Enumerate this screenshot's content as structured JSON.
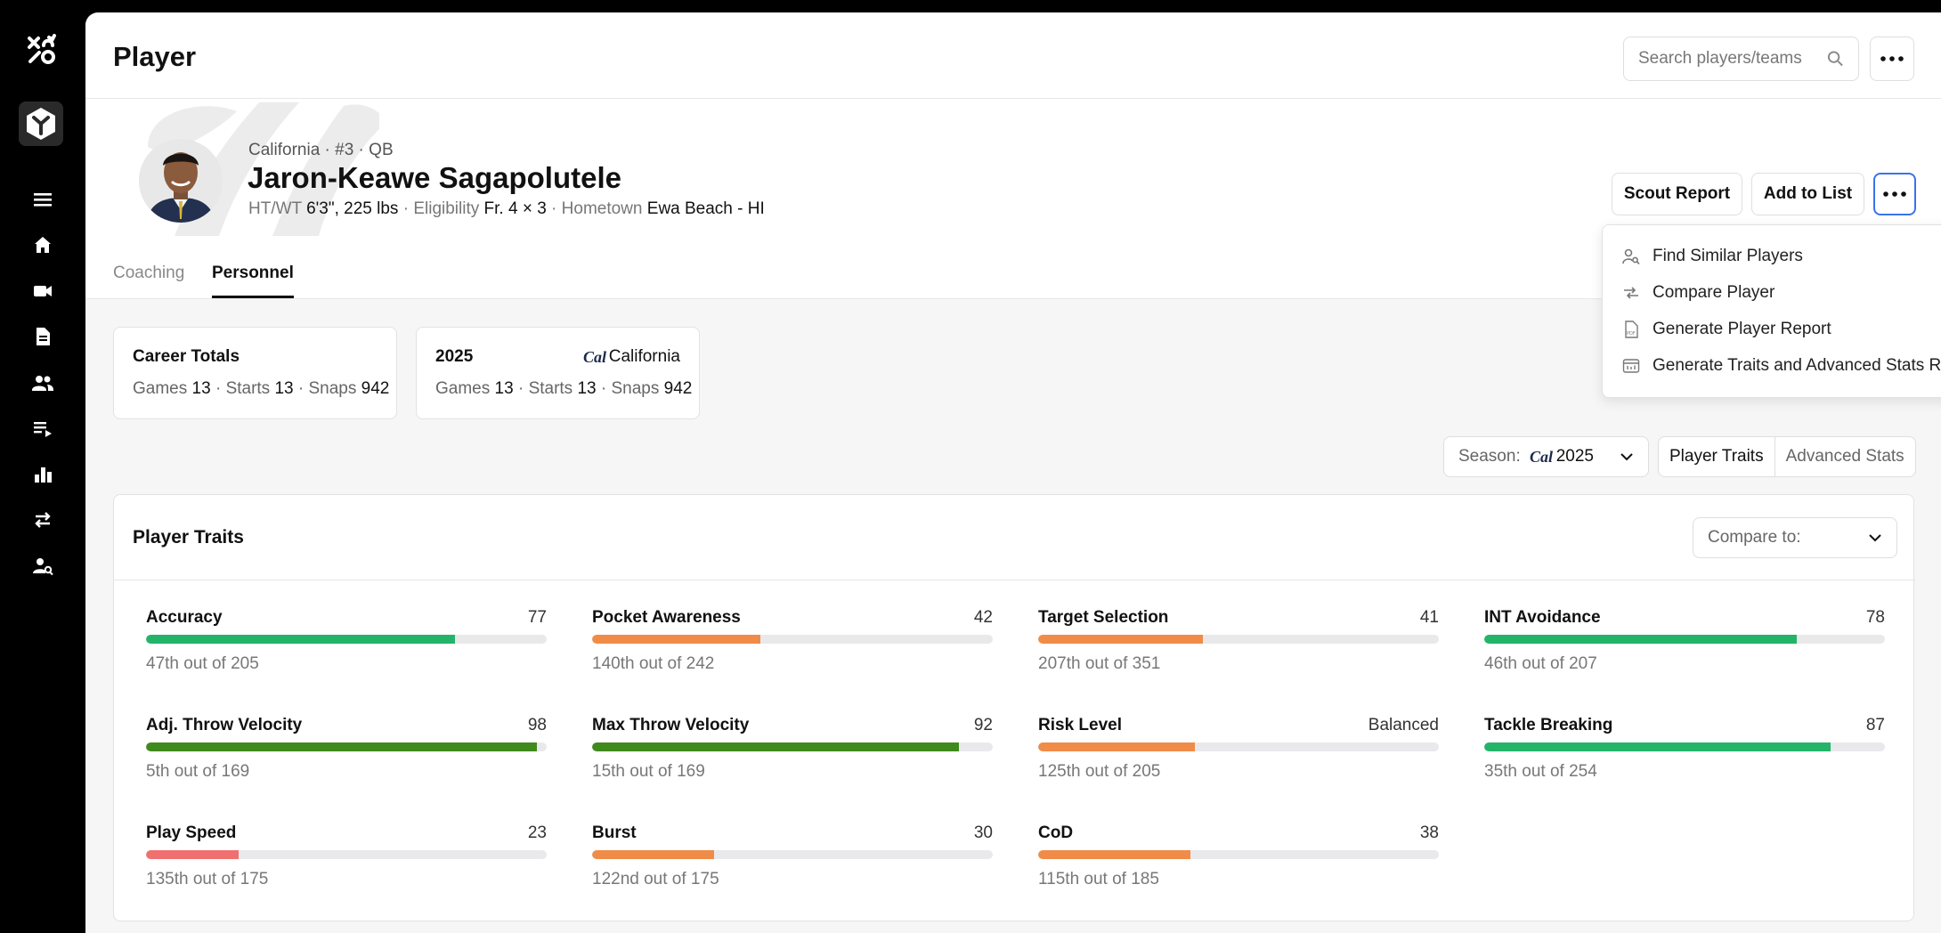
{
  "page": {
    "title": "Player"
  },
  "search": {
    "placeholder": "Search players/teams"
  },
  "player": {
    "subline": "California · #3 · QB",
    "name": "Jaron-Keawe Sagapolutele",
    "htwt_label": "HT/WT",
    "htwt_value": "6'3\", 225 lbs",
    "eligibility_label": "Eligibility",
    "eligibility_value": "Fr. 4 × 3",
    "hometown_label": "Hometown",
    "hometown_value": "Ewa Beach - HI"
  },
  "actions": {
    "scout_report": "Scout Report",
    "add_to_list": "Add to List"
  },
  "menu": {
    "items": [
      {
        "label": "Find Similar Players",
        "icon": "find-similar-icon"
      },
      {
        "label": "Compare Player",
        "icon": "compare-icon"
      },
      {
        "label": "Generate Player Report",
        "icon": "pdf-icon"
      },
      {
        "label": "Generate Traits and Advanced Stats Report",
        "icon": "stats-report-icon"
      }
    ]
  },
  "tabs": [
    {
      "label": "Coaching"
    },
    {
      "label": "Personnel",
      "active": true
    }
  ],
  "career": {
    "title": "Career Totals",
    "games_label": "Games",
    "games": "13",
    "starts_label": "Starts",
    "starts": "13",
    "snaps_label": "Snaps",
    "snaps": "942"
  },
  "season_card": {
    "year": "2025",
    "team": "California",
    "games": "13",
    "starts": "13",
    "snaps": "942"
  },
  "season_select": {
    "label": "Season:",
    "value": "2025"
  },
  "view_toggle": {
    "traits": "Player Traits",
    "advanced": "Advanced Stats"
  },
  "traits": {
    "title": "Player Traits",
    "compare_label": "Compare to:",
    "items": [
      {
        "name": "Accuracy",
        "value": "77",
        "pct": 0.77,
        "rank": "47th out of 205",
        "color": "#23b46a"
      },
      {
        "name": "Pocket Awareness",
        "value": "42",
        "pct": 0.42,
        "rank": "140th out of 242",
        "color": "#f08c48"
      },
      {
        "name": "Target Selection",
        "value": "41",
        "pct": 0.41,
        "rank": "207th out of 351",
        "color": "#f08c48"
      },
      {
        "name": "INT Avoidance",
        "value": "78",
        "pct": 0.78,
        "rank": "46th out of 207",
        "color": "#23b46a"
      },
      {
        "name": "Adj. Throw Velocity",
        "value": "98",
        "pct": 0.975,
        "rank": "5th out of 169",
        "color": "#3f8a1c"
      },
      {
        "name": "Max Throw Velocity",
        "value": "92",
        "pct": 0.915,
        "rank": "15th out of 169",
        "color": "#3f8a1c"
      },
      {
        "name": "Risk Level",
        "value": "Balanced",
        "pct": 0.39,
        "rank": "125th out of 205",
        "color": "#f08c48"
      },
      {
        "name": "Tackle Breaking",
        "value": "87",
        "pct": 0.865,
        "rank": "35th out of 254",
        "color": "#23b46a"
      },
      {
        "name": "Play Speed",
        "value": "23",
        "pct": 0.23,
        "rank": "135th out of 175",
        "color": "#f07070"
      },
      {
        "name": "Burst",
        "value": "30",
        "pct": 0.305,
        "rank": "122nd out of 175",
        "color": "#f08c48"
      },
      {
        "name": "CoD",
        "value": "38",
        "pct": 0.38,
        "rank": "115th out of 185",
        "color": "#f08c48"
      }
    ]
  },
  "sidebar": {
    "items": [
      {
        "icon": "menu-icon"
      },
      {
        "icon": "home-icon"
      },
      {
        "icon": "video-icon"
      },
      {
        "icon": "document-icon"
      },
      {
        "icon": "users-icon"
      },
      {
        "icon": "playlist-icon"
      },
      {
        "icon": "bar-chart-icon"
      },
      {
        "icon": "transfer-icon"
      },
      {
        "icon": "user-search-icon"
      }
    ]
  }
}
